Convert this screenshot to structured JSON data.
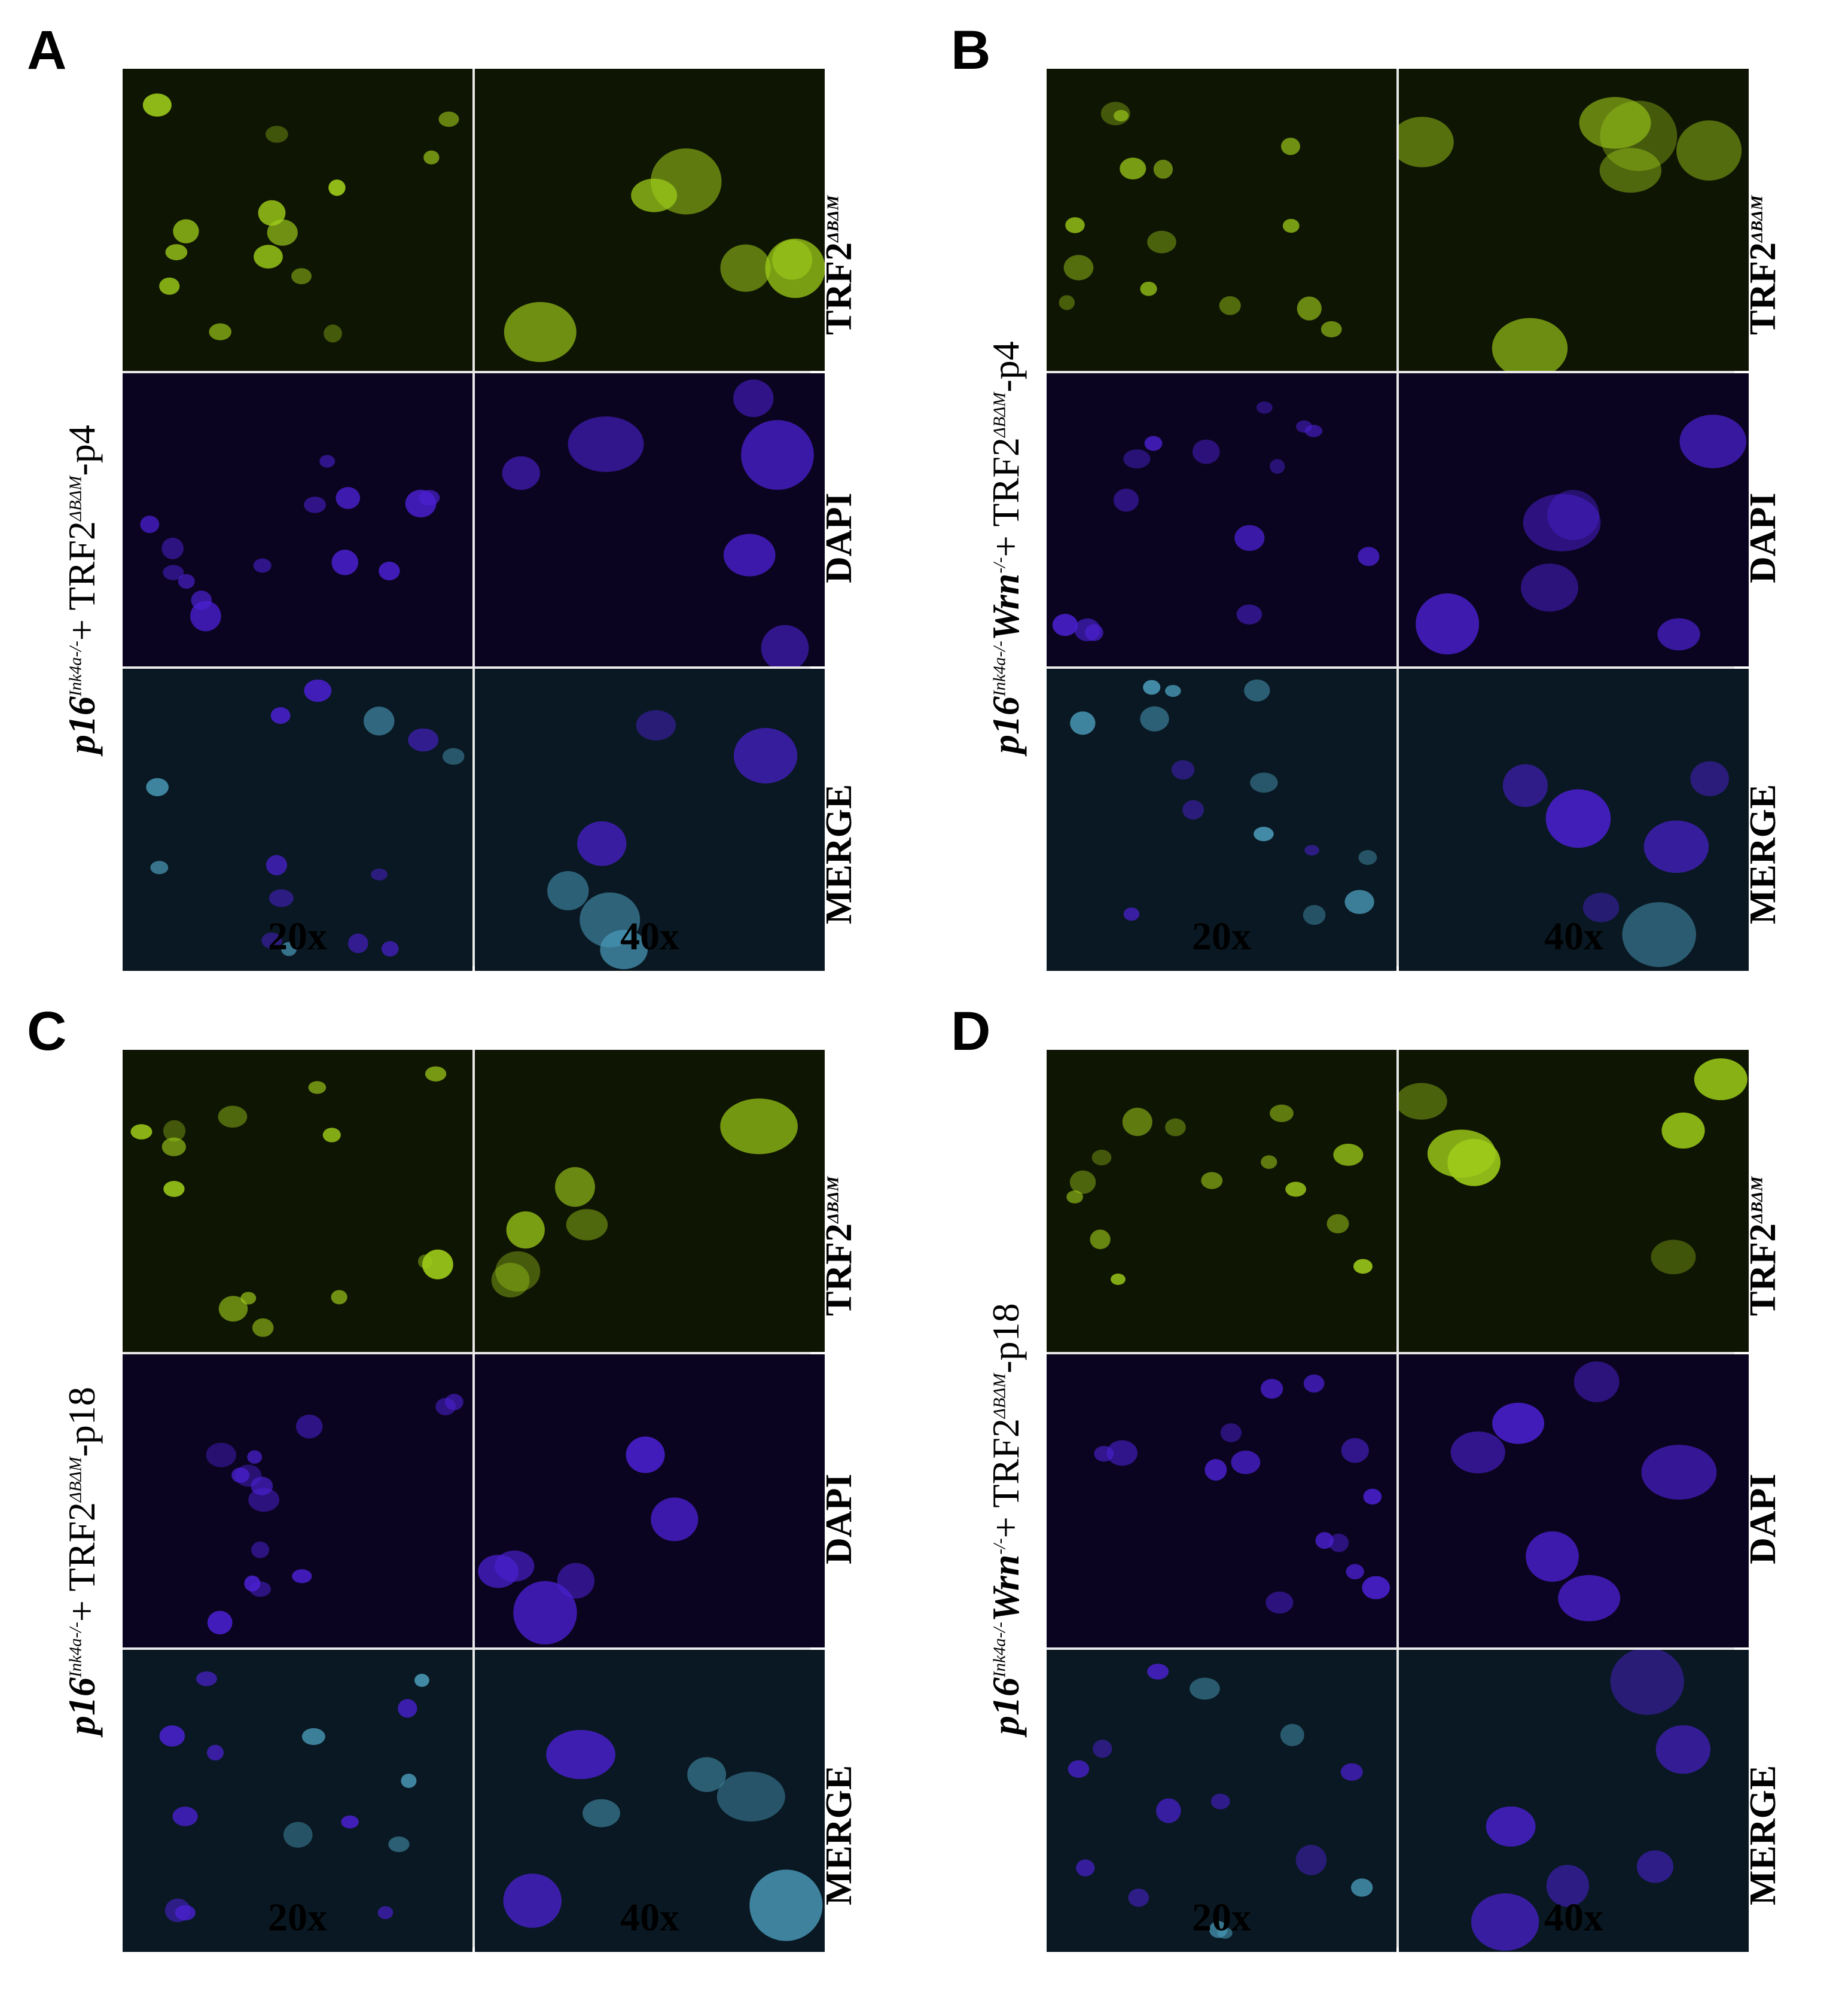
{
  "panels": [
    {
      "letter": "A",
      "genotype_gene": "p16",
      "genotype_allele": "Ink4a-/-",
      "genotype_middle": "",
      "genotype_mid_sup": "",
      "genotype_rest": "+ TRF2",
      "genotype_sup": "ΔBΔM",
      "genotype_tail": "-p4"
    },
    {
      "letter": "B",
      "genotype_gene": "p16",
      "genotype_allele": "Ink4a-/-",
      "genotype_middle": "Wrn",
      "genotype_mid_sup": "-/-",
      "genotype_rest": "+ TRF2",
      "genotype_sup": "ΔBΔM",
      "genotype_tail": "-p4"
    },
    {
      "letter": "C",
      "genotype_gene": "p16",
      "genotype_allele": "Ink4a-/-",
      "genotype_middle": "",
      "genotype_mid_sup": "",
      "genotype_rest": "+ TRF2",
      "genotype_sup": "ΔBΔM",
      "genotype_tail": "-p18"
    },
    {
      "letter": "D",
      "genotype_gene": "p16",
      "genotype_allele": "Ink4a-/-",
      "genotype_middle": "Wrn",
      "genotype_mid_sup": "-/-",
      "genotype_rest": "+ TRF2",
      "genotype_sup": "ΔBΔM",
      "genotype_tail": "-p18"
    }
  ],
  "channels": {
    "trf2": "TRF2",
    "trf2_sup": "ΔBΔM",
    "dapi": "DAPI",
    "merge": "MERGE"
  },
  "magnifications": {
    "low": "20x",
    "high": "40x"
  },
  "colors": {
    "trf2_bg": "#0f1503",
    "dapi_bg": "#0b0420",
    "merge_bg": "#091822",
    "trf2_cell": "#9ecc1a",
    "dapi_cell": "#4a20d0",
    "merge_cell": "#4a9ab8"
  }
}
